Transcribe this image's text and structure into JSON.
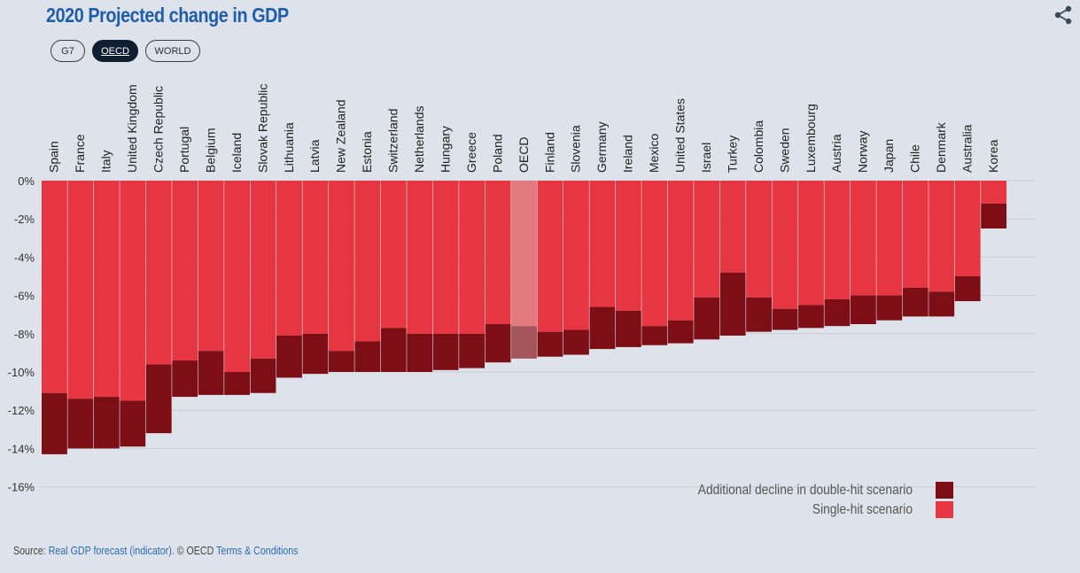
{
  "title": "2020 Projected change in GDP",
  "filters": [
    {
      "label": "G7",
      "active": false
    },
    {
      "label": "OECD",
      "active": true
    },
    {
      "label": "WORLD",
      "active": false
    }
  ],
  "footer": {
    "source_prefix": "Source:",
    "source_link": "Real GDP forecast (indicator).",
    "copyright": "© OECD",
    "terms_link": "Terms & Conditions"
  },
  "colors": {
    "single": "#e63641",
    "double": "#7d0e16",
    "highlight_single": "#e37a80",
    "highlight_double": "#a4565c",
    "grid": "#c9ced8"
  },
  "chart_data": {
    "type": "bar",
    "stacked": true,
    "title": "2020 Projected change in GDP",
    "ylim": [
      -16,
      0
    ],
    "yticks": [
      0,
      -2,
      -4,
      -6,
      -8,
      -10,
      -12,
      -14,
      -16
    ],
    "ytick_labels": [
      "0%",
      "-2%",
      "-4%",
      "-6%",
      "-8%",
      "-10%",
      "-12%",
      "-14%",
      "-16%"
    ],
    "highlight": "OECD",
    "categories": [
      "Spain",
      "France",
      "Italy",
      "United Kingdom",
      "Czech Republic",
      "Portugal",
      "Belgium",
      "Iceland",
      "Slovak Republic",
      "Lithuania",
      "Latvia",
      "New Zealand",
      "Estonia",
      "Switzerland",
      "Netherlands",
      "Hungary",
      "Greece",
      "Poland",
      "OECD",
      "Finland",
      "Slovenia",
      "Germany",
      "Ireland",
      "Mexico",
      "United States",
      "Israel",
      "Turkey",
      "Colombia",
      "Sweden",
      "Luxembourg",
      "Austria",
      "Norway",
      "Japan",
      "Chile",
      "Denmark",
      "Australia",
      "Korea"
    ],
    "series": [
      {
        "name": "Single-hit scenario",
        "values": [
          -11.1,
          -11.4,
          -11.3,
          -11.5,
          -9.6,
          -9.4,
          -8.9,
          -10.0,
          -9.3,
          -8.1,
          -8.0,
          -8.9,
          -8.4,
          -7.7,
          -8.0,
          -8.0,
          -8.0,
          -7.5,
          -7.6,
          -7.9,
          -7.8,
          -6.6,
          -6.8,
          -7.6,
          -7.3,
          -6.1,
          -4.8,
          -6.1,
          -6.7,
          -6.5,
          -6.2,
          -6.0,
          -6.0,
          -5.6,
          -5.8,
          -5.0,
          -1.2
        ]
      },
      {
        "name": "Additional decline in double-hit scenario",
        "values": [
          -3.2,
          -2.6,
          -2.7,
          -2.4,
          -3.6,
          -1.9,
          -2.3,
          -1.2,
          -1.8,
          -2.2,
          -2.1,
          -1.1,
          -1.6,
          -2.3,
          -2.0,
          -1.9,
          -1.8,
          -2.0,
          -1.7,
          -1.3,
          -1.3,
          -2.2,
          -1.9,
          -1.0,
          -1.2,
          -2.2,
          -3.3,
          -1.8,
          -1.1,
          -1.2,
          -1.4,
          -1.5,
          -1.3,
          -1.5,
          -1.3,
          -1.3,
          -1.3
        ]
      }
    ],
    "legend": [
      {
        "label": "Additional decline in double-hit scenario",
        "series": 1
      },
      {
        "label": "Single-hit scenario",
        "series": 0
      }
    ],
    "legend_position": "bottom-right"
  }
}
